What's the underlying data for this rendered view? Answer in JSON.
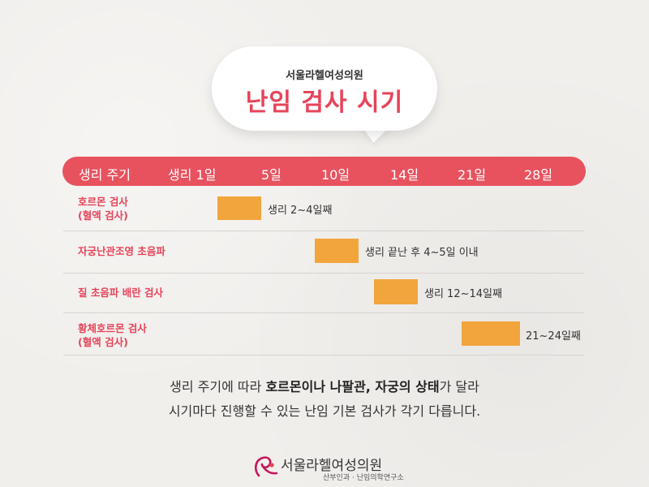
{
  "bubble": {
    "clinic_name": "서울라헬여성의원",
    "title": "난임 검사 시기"
  },
  "header": {
    "cycle_label": "생리 주기",
    "days": [
      "생리 1일",
      "5일",
      "10일",
      "14일",
      "21일",
      "28일"
    ]
  },
  "rows": [
    {
      "label_line1": "호르몬 검사",
      "label_line2": "(혈액 검사)",
      "note": "생리 2~4일째"
    },
    {
      "label_line1": "자궁난관조영 초음파",
      "label_line2": "",
      "note": "생리 끝난 후 4~5일 이내"
    },
    {
      "label_line1": "질 초음파 배란 검사",
      "label_line2": "",
      "note": "생리 12~14일째"
    },
    {
      "label_line1": "황체호르몬 검사",
      "label_line2": "(혈액 검사)",
      "note": "21~24일째"
    }
  ],
  "description": {
    "line1_a": "생리 주기에 따라 ",
    "line1_b": "호르몬이나 나팔관, 자궁의 상태",
    "line1_c": "가 달라",
    "line2": "시기마다 진행할 수 있는 난임 기본 검사가 각기 다릅니다."
  },
  "footer": {
    "name": "서울라헬여성의원",
    "subtitle": "산부인과 · 난임의학연구소"
  },
  "colors": {
    "accent": "#e6445a",
    "header_bar": "#e8525f",
    "bar": "#f2a53c"
  }
}
